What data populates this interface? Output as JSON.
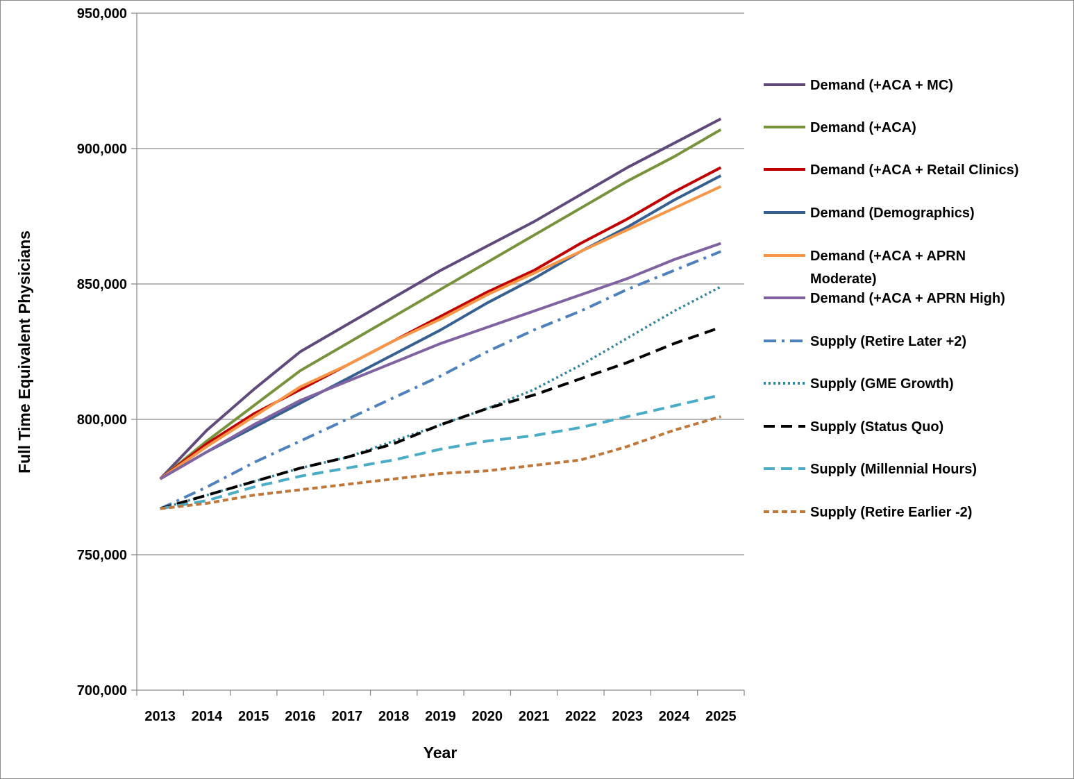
{
  "chart_data": {
    "type": "line",
    "title": "",
    "xlabel": "Year",
    "ylabel": "Full Time Equivalent Physicians",
    "ylim": [
      700000,
      950000
    ],
    "yticks": [
      700000,
      750000,
      800000,
      850000,
      900000,
      950000
    ],
    "ytick_labels": [
      "700,000",
      "750,000",
      "800,000",
      "850,000",
      "900,000",
      "950,000"
    ],
    "grid": "horizontal",
    "legend_position": "right",
    "categories": [
      "2013",
      "2014",
      "2015",
      "2016",
      "2017",
      "2018",
      "2019",
      "2020",
      "2021",
      "2022",
      "2023",
      "2024",
      "2025"
    ],
    "series": [
      {
        "name": "Demand (+ACA + MC)",
        "color": "#604A7B",
        "dash": "solid",
        "values": [
          778000,
          796000,
          811000,
          825000,
          835000,
          845000,
          855000,
          864000,
          873000,
          883000,
          893000,
          902000,
          911000
        ]
      },
      {
        "name": "Demand (+ACA)",
        "color": "#77933C",
        "dash": "solid",
        "values": [
          778000,
          792000,
          805000,
          818000,
          828000,
          838000,
          848000,
          858000,
          868000,
          878000,
          888000,
          897000,
          907000
        ]
      },
      {
        "name": "Demand (+ACA + Retail Clinics)",
        "color": "#C00000",
        "dash": "solid",
        "values": [
          778000,
          791000,
          802000,
          811000,
          820000,
          829000,
          838000,
          847000,
          855000,
          865000,
          874000,
          884000,
          893000
        ]
      },
      {
        "name": "Demand (Demographics)",
        "color": "#376092",
        "dash": "solid",
        "values": [
          778000,
          788000,
          797000,
          806000,
          815000,
          824000,
          833000,
          843000,
          852000,
          862000,
          871000,
          881000,
          890000
        ]
      },
      {
        "name": "Demand (+ACA + APRN Moderate)",
        "color": "#F79646",
        "dash": "solid",
        "values": [
          778000,
          790000,
          801000,
          812000,
          820000,
          829000,
          837000,
          846000,
          854000,
          862000,
          870000,
          878000,
          886000
        ]
      },
      {
        "name": "Demand (+ACA + APRN High)",
        "color": "#8064A2",
        "dash": "solid",
        "values": [
          778000,
          788000,
          798000,
          807000,
          814000,
          821000,
          828000,
          834000,
          840000,
          846000,
          852000,
          859000,
          865000
        ]
      },
      {
        "name": "Supply (Retire Later +2)",
        "color": "#4F81BD",
        "dash": "dashdot",
        "values": [
          767000,
          775000,
          784000,
          792000,
          800000,
          808000,
          816000,
          825000,
          833000,
          840000,
          848000,
          855000,
          862000
        ]
      },
      {
        "name": "Supply (GME Growth)",
        "color": "#31859C",
        "dash": "dot",
        "values": [
          767000,
          772000,
          777000,
          782000,
          786000,
          792000,
          798000,
          804000,
          811000,
          820000,
          830000,
          840000,
          849000
        ]
      },
      {
        "name": "Supply (Status Quo)",
        "color": "#000000",
        "dash": "dash",
        "values": [
          767000,
          772000,
          777000,
          782000,
          786000,
          791000,
          798000,
          804000,
          809000,
          815000,
          821000,
          828000,
          834000
        ]
      },
      {
        "name": "Supply (Millennial Hours)",
        "color": "#4BACC6",
        "dash": "dash",
        "values": [
          767000,
          770000,
          775000,
          779000,
          782000,
          785000,
          789000,
          792000,
          794000,
          797000,
          801000,
          805000,
          809000
        ]
      },
      {
        "name": "Supply (Retire Earlier -2)",
        "color": "#C0773A",
        "dash": "dashshort",
        "values": [
          767000,
          769000,
          772000,
          774000,
          776000,
          778000,
          780000,
          781000,
          783000,
          785000,
          790000,
          796000,
          801000
        ]
      }
    ],
    "legend_labels": [
      [
        "Demand (+ACA + MC)"
      ],
      [
        "Demand (+ACA)"
      ],
      [
        "Demand (+ACA + Retail Clinics)"
      ],
      [
        "Demand (Demographics)"
      ],
      [
        "Demand (+ACA + APRN",
        "Moderate)"
      ],
      [
        "Demand (+ACA + APRN High)"
      ],
      [
        "Supply (Retire Later +2)"
      ],
      [
        "Supply (GME Growth)"
      ],
      [
        "Supply (Status Quo)"
      ],
      [
        "Supply (Millennial Hours)"
      ],
      [
        "Supply (Retire Earlier -2)"
      ]
    ]
  }
}
